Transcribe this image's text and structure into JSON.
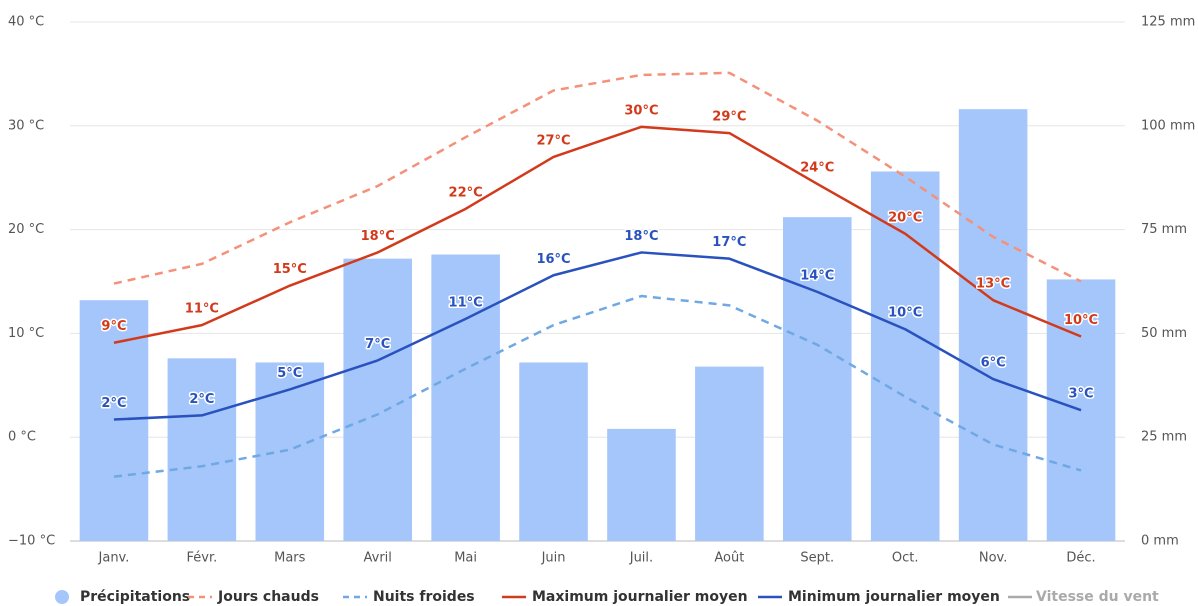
{
  "chart_data": {
    "type": "combo",
    "categories": [
      "Janv.",
      "Févr.",
      "Mars",
      "Avril",
      "Mai",
      "Juin",
      "Juil.",
      "Août",
      "Sept.",
      "Oct.",
      "Nov.",
      "Déc."
    ],
    "ylim": [
      -10,
      40
    ],
    "yticks": [
      {
        "value": -10,
        "label": "−10 °C"
      },
      {
        "value": 0,
        "label": "0 °C"
      },
      {
        "value": 10,
        "label": "10 °C"
      },
      {
        "value": 20,
        "label": "20 °C"
      },
      {
        "value": 30,
        "label": "30 °C"
      },
      {
        "value": 40,
        "label": "40 °C"
      }
    ],
    "y2lim": [
      0,
      125
    ],
    "y2ticks": [
      {
        "value": 0,
        "label": "0 mm"
      },
      {
        "value": 25,
        "label": "25 mm"
      },
      {
        "value": 50,
        "label": "50 mm"
      },
      {
        "value": 75,
        "label": "75 mm"
      },
      {
        "value": 100,
        "label": "100 mm"
      },
      {
        "value": 125,
        "label": "125 mm"
      }
    ],
    "grid": true,
    "legend": "bottom",
    "series": [
      {
        "name": "Précipitations",
        "type": "bar",
        "axis": "y2",
        "color": "#a5c6fa",
        "values": [
          58,
          44,
          43,
          68,
          69,
          43,
          27,
          42,
          78,
          89,
          104,
          63
        ]
      },
      {
        "name": "Jours chauds",
        "type": "line",
        "dash": true,
        "color": "#f4917a",
        "values": [
          14.8,
          16.7,
          20.7,
          24.2,
          28.9,
          33.4,
          34.9,
          35.1,
          30.5,
          25.1,
          19.3,
          15.0
        ]
      },
      {
        "name": "Nuits froides",
        "type": "line",
        "dash": true,
        "color": "#6fa8e3",
        "values": [
          -3.8,
          -2.8,
          -1.2,
          2.2,
          6.6,
          10.8,
          13.6,
          12.7,
          8.9,
          3.9,
          -0.7,
          -3.2
        ]
      },
      {
        "name": "Maximum journalier moyen",
        "type": "line",
        "color": "#d23a1c",
        "values": [
          9.1,
          10.8,
          14.6,
          17.8,
          22.0,
          27.0,
          29.9,
          29.3,
          24.4,
          19.6,
          13.2,
          9.7
        ],
        "value_labels": [
          "9°C",
          "11°C",
          "15°C",
          "18°C",
          "22°C",
          "27°C",
          "30°C",
          "29°C",
          "24°C",
          "20°C",
          "13°C",
          "10°C"
        ]
      },
      {
        "name": "Minimum journalier moyen",
        "type": "line",
        "color": "#2a52be",
        "values": [
          1.7,
          2.1,
          4.6,
          7.4,
          11.4,
          15.6,
          17.8,
          17.2,
          14.0,
          10.4,
          5.6,
          2.6
        ],
        "value_labels": [
          "2°C",
          "2°C",
          "5°C",
          "7°C",
          "11°C",
          "16°C",
          "18°C",
          "17°C",
          "14°C",
          "10°C",
          "6°C",
          "3°C"
        ]
      }
    ],
    "hidden_series": [
      {
        "name": "Vitesse du vent",
        "color": "#aaaaaa"
      }
    ]
  }
}
